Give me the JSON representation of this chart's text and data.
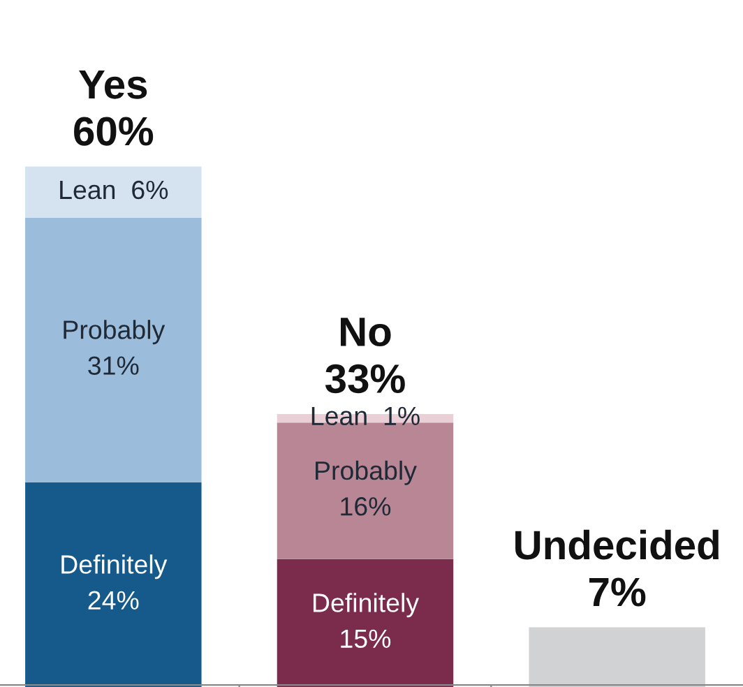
{
  "chart_data": {
    "type": "bar",
    "stacked": true,
    "categories": [
      null,
      null,
      null
    ],
    "series": [
      {
        "colors": [
          "#165a8c",
          "#7b2b4b",
          "#d1d2d4"
        ],
        "values": [
          24,
          15,
          7
        ],
        "value_labels": [
          "Definitely\n24%",
          "Definitely\n15%",
          null
        ]
      },
      {
        "colors": [
          "#9bbcdb",
          "#b88694",
          "#d1d2d4"
        ],
        "values": [
          31,
          16,
          null
        ],
        "value_labels": [
          "Probably\n31%",
          "Probably\n16%",
          null
        ]
      },
      {
        "colors": [
          "#d4e3ef",
          "#eacfd7",
          "#d1d2d4"
        ],
        "values": [
          6,
          1,
          null
        ],
        "value_labels": [
          "Lean  6%",
          "Lean  1%",
          null
        ]
      }
    ],
    "totals": [
      "Yes\n60%",
      "No\n33%",
      "Undecided\n7%"
    ],
    "grid": false,
    "legend": false
  }
}
